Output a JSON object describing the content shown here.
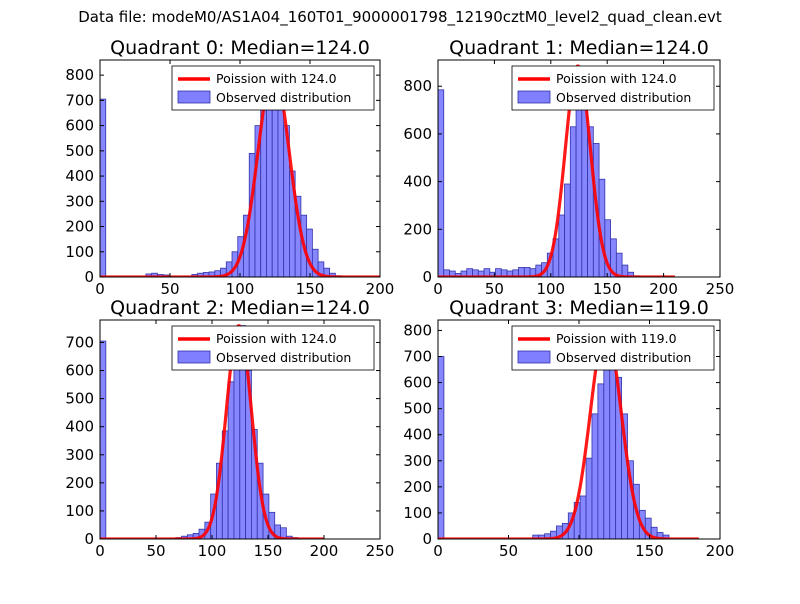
{
  "figure": {
    "suptitle": "Data file: modeM0/AS1A04_160T01_9000001798_12190cztM0_level2_quad_clean.evt"
  },
  "colors": {
    "poisson_line": "#ff0000",
    "hist_fill": "#7f7fff",
    "hist_edge": "#3333aa",
    "axes": "#000000",
    "background": "#ffffff"
  },
  "chart_data": [
    {
      "type": "bar",
      "title": "Quadrant 0: Median=124.0",
      "legend": {
        "position": "top-right",
        "line_label": "Poission with 124.0",
        "bar_label": "Observed distribution"
      },
      "xlim": [
        0,
        200
      ],
      "ylim": [
        0,
        860
      ],
      "xticks": [
        0,
        50,
        100,
        150,
        200
      ],
      "yticks": [
        0,
        100,
        200,
        300,
        400,
        500,
        600,
        700,
        800
      ],
      "bin_width": 4.1,
      "bin_starts": [
        0,
        32.8,
        36.9,
        41,
        45.1,
        65.6,
        69.7,
        73.8,
        77.9,
        82,
        86.1,
        90.2,
        94.3,
        98.4,
        102.5,
        106.6,
        110.7,
        114.8,
        118.9,
        123,
        127.1,
        131.2,
        135.3,
        139.4,
        143.5,
        147.6,
        151.7,
        155.8,
        159.9,
        164,
        168.1
      ],
      "bin_counts": [
        705,
        12,
        15,
        10,
        8,
        10,
        15,
        18,
        20,
        25,
        35,
        60,
        100,
        160,
        245,
        490,
        600,
        770,
        800,
        810,
        670,
        600,
        420,
        320,
        245,
        190,
        110,
        60,
        35,
        15,
        5
      ],
      "poisson": {
        "mean": 124.0,
        "peak": 820,
        "x_range": [
          0,
          200
        ]
      }
    },
    {
      "type": "bar",
      "title": "Quadrant 1: Median=124.0",
      "legend": {
        "position": "top-right",
        "line_label": "Poission with 124.0",
        "bar_label": "Observed distribution"
      },
      "xlim": [
        0,
        250
      ],
      "ylim": [
        0,
        910
      ],
      "xticks": [
        0,
        50,
        100,
        150,
        200,
        250
      ],
      "yticks": [
        0,
        200,
        400,
        600,
        800
      ],
      "bin_width": 5.1,
      "bin_starts": [
        0,
        5.1,
        10.2,
        15.3,
        20.4,
        25.5,
        30.6,
        35.7,
        40.8,
        45.9,
        51,
        56.1,
        61.2,
        66.3,
        71.4,
        76.5,
        81.6,
        86.7,
        91.8,
        96.9,
        102,
        107.1,
        112.2,
        117.3,
        122.4,
        127.5,
        132.6,
        137.7,
        142.8,
        147.9,
        153,
        158.1,
        163.2,
        168.3,
        173.4
      ],
      "bin_counts": [
        785,
        30,
        25,
        15,
        25,
        35,
        30,
        25,
        35,
        20,
        35,
        30,
        25,
        30,
        40,
        40,
        35,
        50,
        60,
        100,
        160,
        260,
        390,
        630,
        760,
        780,
        630,
        560,
        410,
        240,
        160,
        100,
        50,
        20,
        5
      ],
      "poisson": {
        "mean": 124.0,
        "peak": 885,
        "x_range": [
          0,
          210
        ]
      }
    },
    {
      "type": "bar",
      "title": "Quadrant 2: Median=124.0",
      "legend": {
        "position": "top-right",
        "line_label": "Poission with 124.0",
        "bar_label": "Observed distribution"
      },
      "xlim": [
        0,
        250
      ],
      "ylim": [
        0,
        780
      ],
      "xticks": [
        0,
        50,
        100,
        150,
        200,
        250
      ],
      "yticks": [
        0,
        100,
        200,
        300,
        400,
        500,
        600,
        700
      ],
      "bin_width": 5.2,
      "bin_starts": [
        0,
        67.6,
        72.8,
        78,
        83.2,
        88.4,
        93.6,
        98.8,
        104,
        109.2,
        114.4,
        119.6,
        124.8,
        130,
        135.2,
        140.4,
        145.6,
        150.8,
        156,
        161.2,
        166.4,
        171.6
      ],
      "bin_counts": [
        705,
        5,
        10,
        15,
        20,
        35,
        60,
        160,
        270,
        385,
        560,
        730,
        760,
        600,
        390,
        270,
        160,
        95,
        50,
        40,
        10,
        5
      ],
      "poisson": {
        "mean": 124.0,
        "peak": 760,
        "x_range": [
          0,
          200
        ]
      }
    },
    {
      "type": "bar",
      "title": "Quadrant 3: Median=119.0",
      "legend": {
        "position": "top-right",
        "line_label": "Poission with 119.0",
        "bar_label": "Observed distribution"
      },
      "xlim": [
        0,
        200
      ],
      "ylim": [
        0,
        840
      ],
      "xticks": [
        0,
        50,
        100,
        150,
        200
      ],
      "yticks": [
        0,
        100,
        200,
        300,
        400,
        500,
        600,
        700,
        800
      ],
      "bin_width": 4.2,
      "bin_starts": [
        0,
        67.2,
        71.4,
        75.6,
        79.8,
        84,
        88.2,
        92.4,
        96.6,
        100.8,
        105,
        109.2,
        113.4,
        117.6,
        121.8,
        126,
        130.2,
        134.4,
        138.6,
        142.8,
        147,
        151.2,
        155.4,
        159.6
      ],
      "bin_counts": [
        700,
        15,
        15,
        20,
        30,
        50,
        60,
        100,
        140,
        165,
        310,
        480,
        595,
        720,
        650,
        620,
        480,
        300,
        210,
        110,
        80,
        45,
        25,
        15
      ],
      "poisson": {
        "mean": 119.0,
        "peak": 805,
        "x_range": [
          0,
          185
        ]
      }
    }
  ]
}
